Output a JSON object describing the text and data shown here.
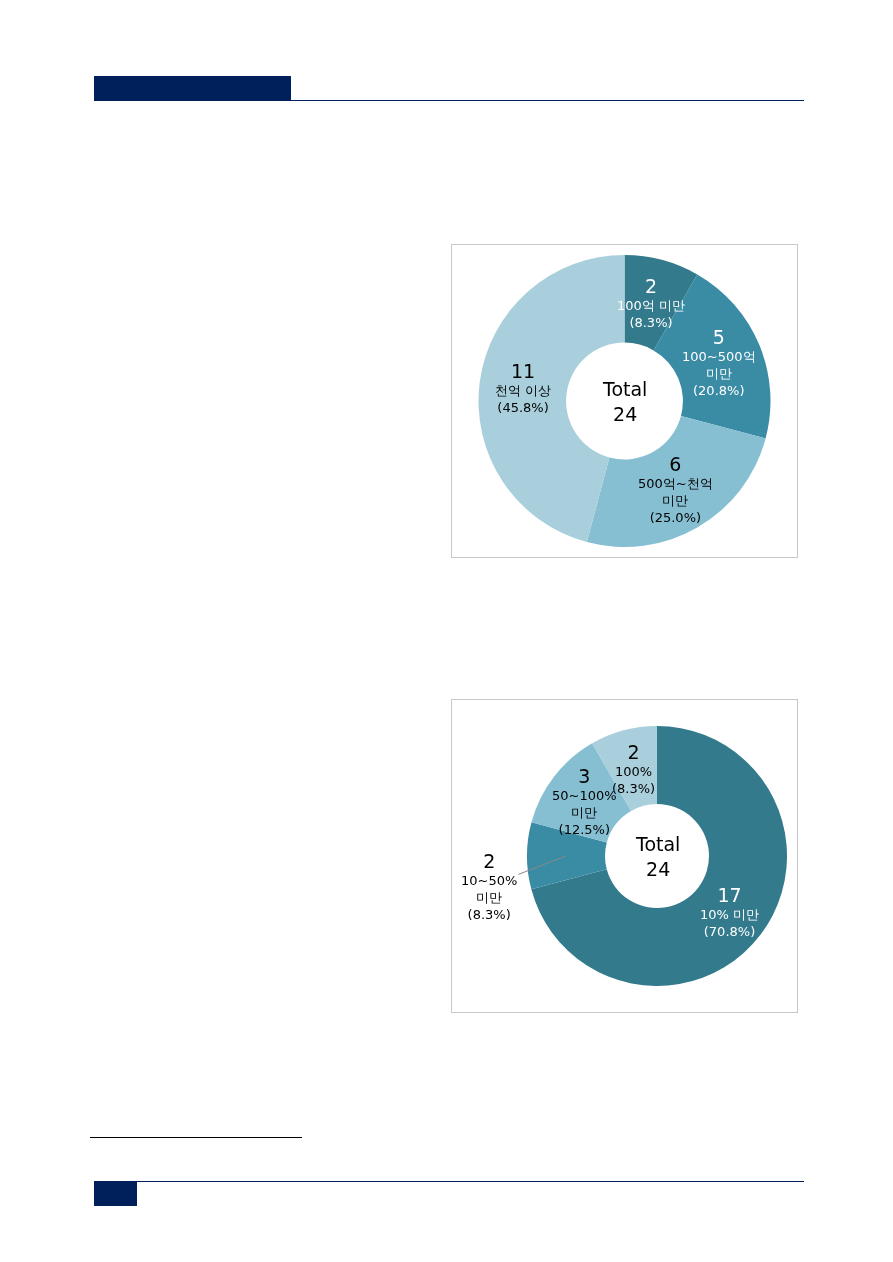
{
  "chart_data": [
    {
      "type": "donut",
      "categories": [
        "100억 미만",
        "100~500억 미만",
        "500억~천억 미만",
        "천억 이상"
      ],
      "values": [
        8.3,
        20.8,
        25.0,
        45.8
      ],
      "colors": [
        "#337a8c",
        "#3a8ca5",
        "#86bfd2",
        "#a9cfdc"
      ],
      "value_labels": [
        "(8.3%)",
        "(20.8%)",
        "(25.0%)",
        "(45.8%)"
      ],
      "annotations": [
        "Total\n24",
        {
          "text": "2",
          "x": "100억 미만"
        },
        {
          "text": "5",
          "x": "100~500억 미만"
        },
        {
          "text": "6",
          "x": "500억~천억 미만"
        },
        {
          "text": "11",
          "x": "천억 이상"
        }
      ]
    },
    {
      "type": "donut",
      "categories": [
        "10% 미만",
        "10~50% 미만",
        "50~100% 미만",
        "100%"
      ],
      "values": [
        70.8,
        8.3,
        12.5,
        8.3
      ],
      "colors": [
        "#337a8c",
        "#3a8ca5",
        "#86bfd2",
        "#a9cfdc"
      ],
      "value_labels": [
        "(70.8%)",
        "(8.3%)",
        "(12.5%)",
        "(8.3%)"
      ],
      "annotations": [
        "Total\n24",
        {
          "text": "17",
          "x": "10% 미만"
        },
        {
          "text": "2",
          "x": "10~50% 미만"
        },
        {
          "text": "3",
          "x": "50~100% 미만"
        },
        {
          "text": "2",
          "x": "100%"
        }
      ]
    }
  ]
}
